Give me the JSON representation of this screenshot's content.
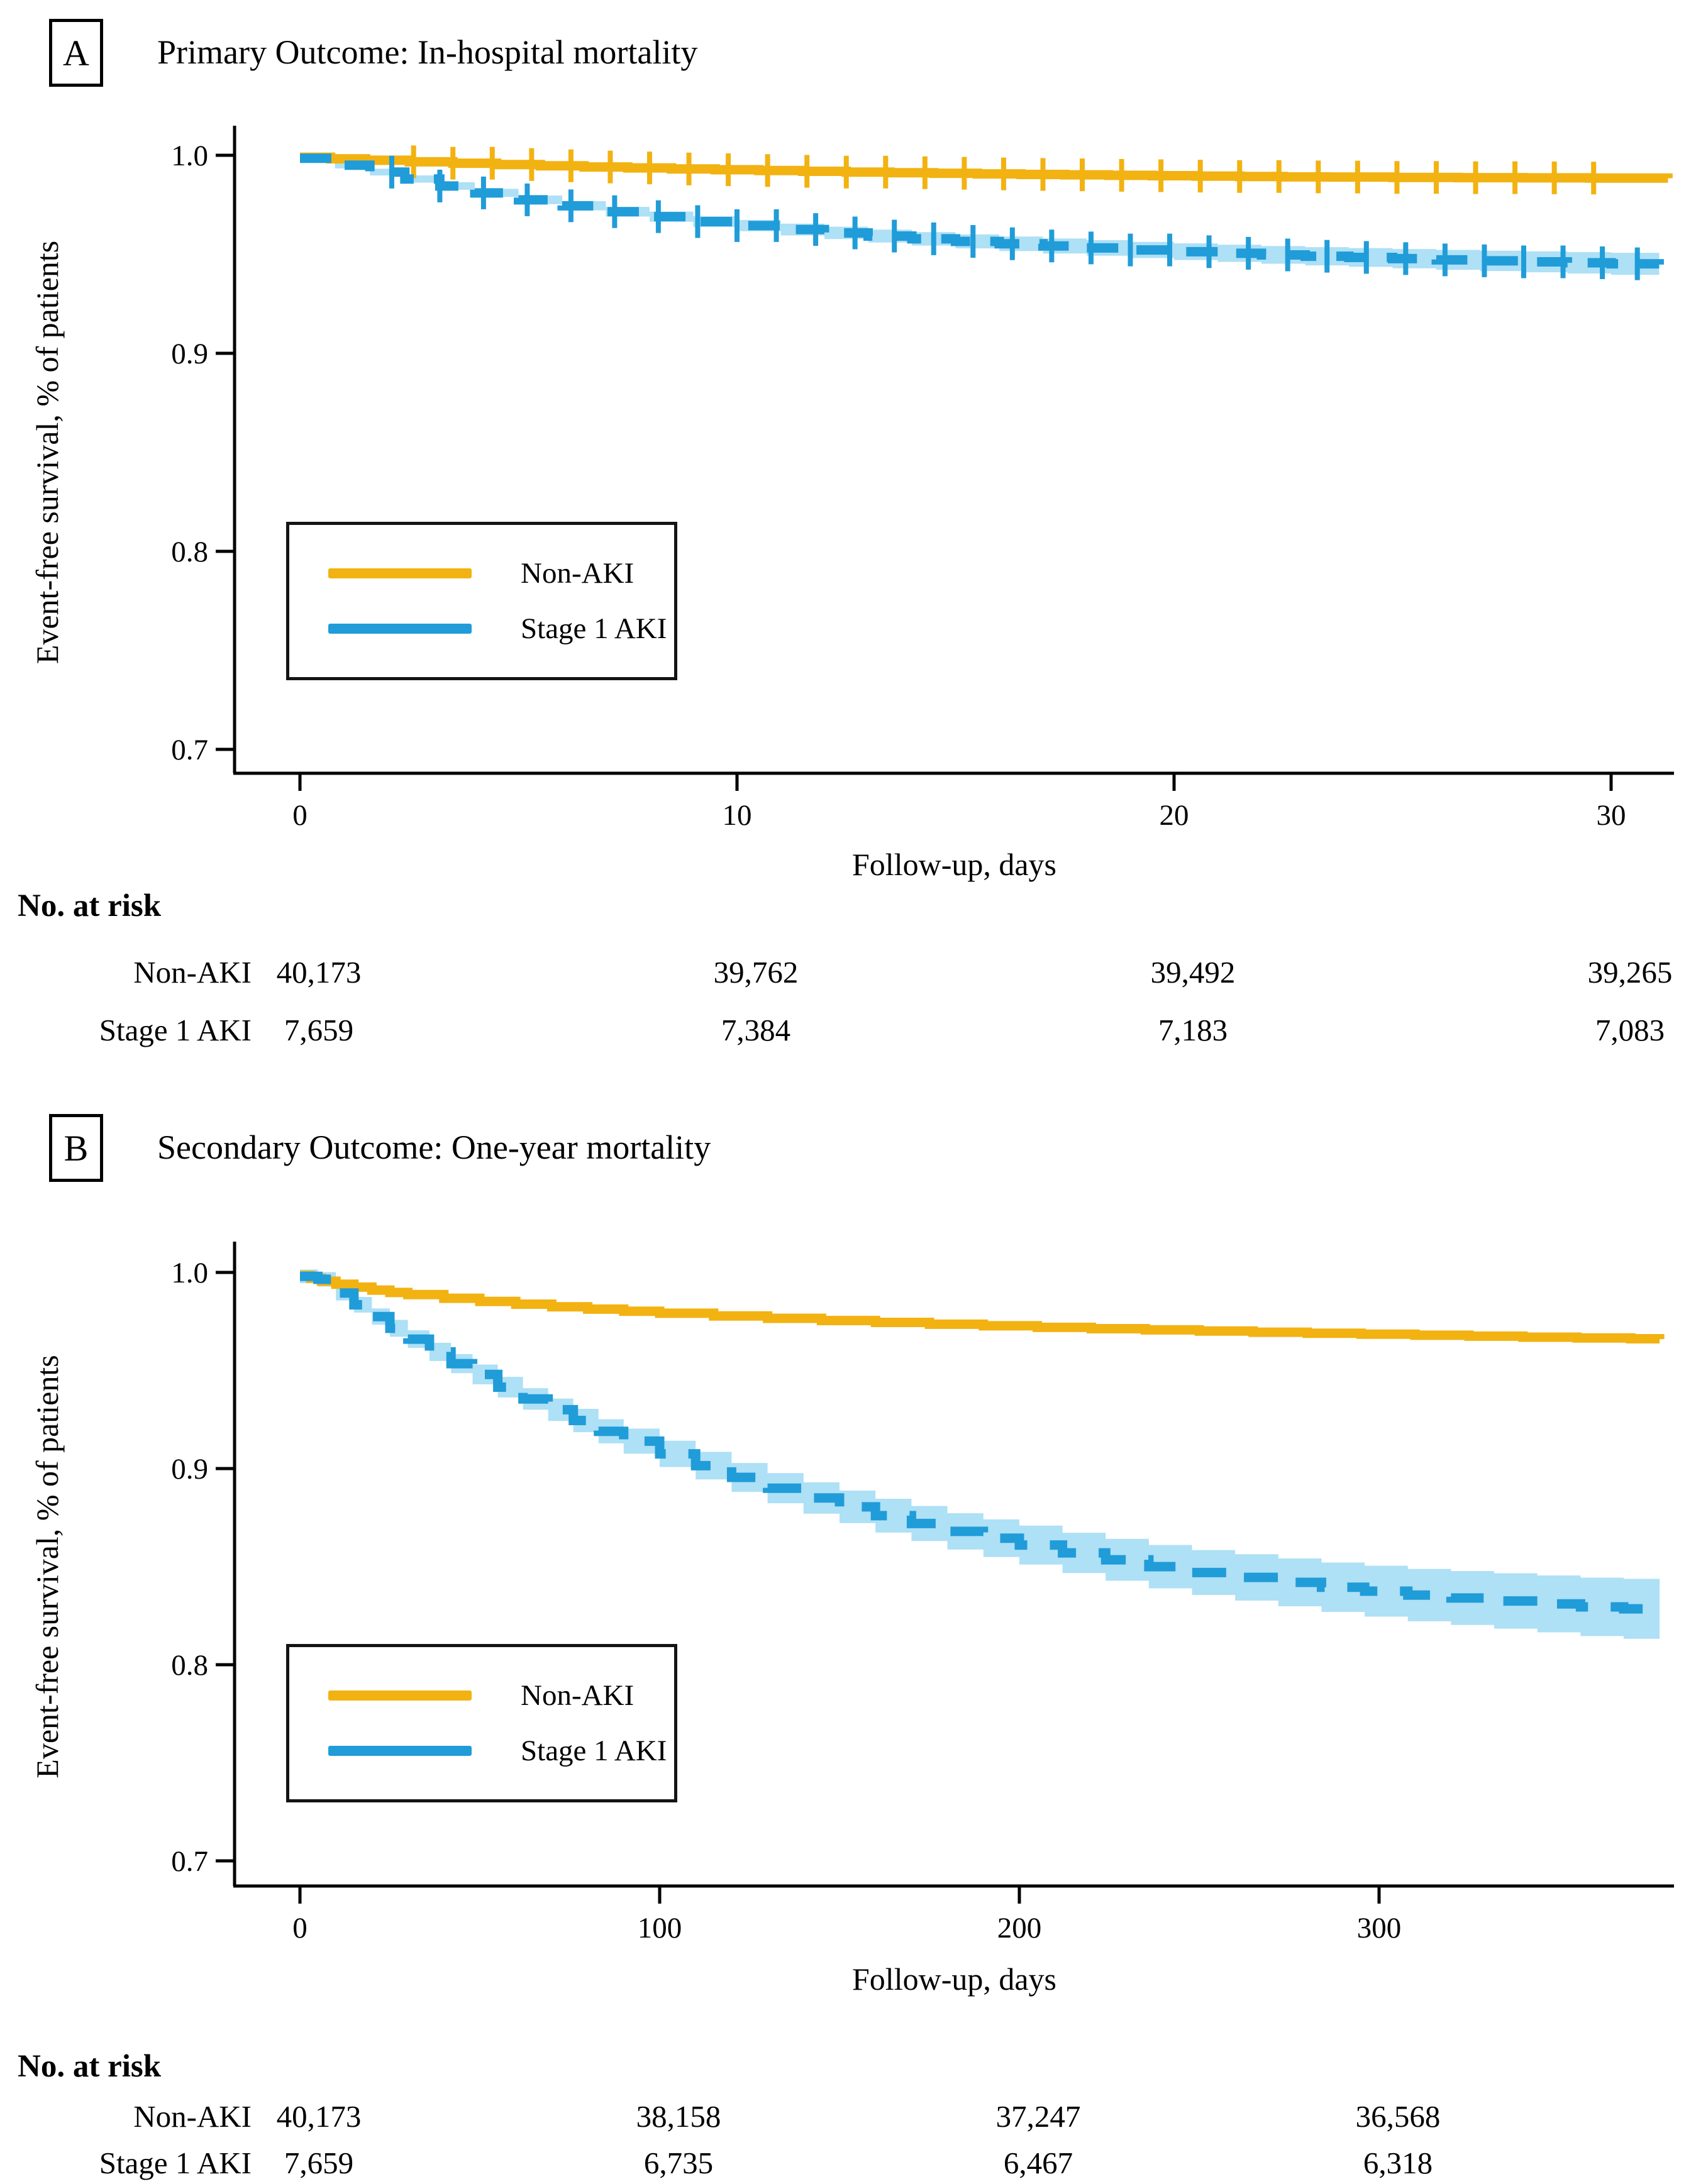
{
  "figure": {
    "background": "#ffffff",
    "text_color": "#000000",
    "axis_color": "#000000"
  },
  "chart_data": [
    {
      "type": "line",
      "tag": "A",
      "title": "Primary Outcome: In-hospital mortality",
      "xlabel": "Follow-up, days",
      "ylabel": "Event-free survival, % of patients",
      "xlim": [
        0,
        31.5
      ],
      "ylim": [
        0.68,
        1.005
      ],
      "grid": "off",
      "legend_position": "lower-left",
      "x_ticks": {
        "values": [
          0,
          10,
          20,
          30
        ],
        "labels": [
          "0",
          "10",
          "20",
          "30"
        ]
      },
      "y_ticks": {
        "values": [
          1.0,
          0.9,
          0.8,
          0.7
        ],
        "labels": [
          "1.0",
          "0.9",
          "0.8",
          "0.7"
        ]
      },
      "series": [
        {
          "name": "Non-AKI",
          "color": "#F2B211",
          "style": "solid",
          "points": [
            [
              0,
              0.999
            ],
            [
              0.7,
              0.9982
            ],
            [
              1.5,
              0.9975
            ],
            [
              2.5,
              0.9967
            ],
            [
              3.5,
              0.996
            ],
            [
              4.5,
              0.9953
            ],
            [
              5.5,
              0.9947
            ],
            [
              6.5,
              0.9941
            ],
            [
              7.5,
              0.9936
            ],
            [
              8.5,
              0.9931
            ],
            [
              9.5,
              0.9927
            ],
            [
              10.5,
              0.9923
            ],
            [
              11.5,
              0.9919
            ],
            [
              12.5,
              0.9915
            ],
            [
              13.5,
              0.9912
            ],
            [
              14.5,
              0.9909
            ],
            [
              15.5,
              0.9906
            ],
            [
              16.5,
              0.9903
            ],
            [
              17.5,
              0.9901
            ],
            [
              18.5,
              0.9899
            ],
            [
              19.5,
              0.9897
            ],
            [
              20.5,
              0.9895
            ],
            [
              21.5,
              0.9893
            ],
            [
              22.5,
              0.9891
            ],
            [
              23.5,
              0.989
            ],
            [
              25,
              0.9888
            ],
            [
              26.5,
              0.9887
            ],
            [
              28,
              0.9886
            ],
            [
              29.5,
              0.9885
            ],
            [
              31.3,
              0.9884
            ]
          ],
          "censor_days": [
            2.6,
            3.5,
            4.4,
            5.3,
            6.2,
            7.1,
            8,
            8.9,
            9.8,
            10.7,
            11.6,
            12.5,
            13.4,
            14.3,
            15.2,
            16.1,
            17,
            17.9,
            18.8,
            19.7,
            20.6,
            21.5,
            22.4,
            23.3,
            24.2,
            25.1,
            26,
            26.9,
            27.8,
            28.7,
            29.6
          ]
        },
        {
          "name": "Stage 1 AKI",
          "color": "#209CD8",
          "style": "dashed",
          "band_color": "#AEE0F6",
          "ci_halfwidth_start": 0.0015,
          "ci_halfwidth_per_day": 0.000135,
          "points": [
            [
              0,
              0.9985
            ],
            [
              0.8,
              0.995
            ],
            [
              1.6,
              0.9915
            ],
            [
              2.4,
              0.988
            ],
            [
              3.2,
              0.9845
            ],
            [
              4,
              0.981
            ],
            [
              5,
              0.9775
            ],
            [
              6,
              0.9745
            ],
            [
              7,
              0.9715
            ],
            [
              8,
              0.969
            ],
            [
              9,
              0.9665
            ],
            [
              10,
              0.9645
            ],
            [
              11,
              0.9625
            ],
            [
              12,
              0.9608
            ],
            [
              13,
              0.9592
            ],
            [
              14,
              0.9578
            ],
            [
              15,
              0.9565
            ],
            [
              16,
              0.9553
            ],
            [
              17,
              0.9542
            ],
            [
              18,
              0.9532
            ],
            [
              19,
              0.9522
            ],
            [
              20,
              0.9513
            ],
            [
              21,
              0.9505
            ],
            [
              22,
              0.9497
            ],
            [
              23,
              0.949
            ],
            [
              24,
              0.9484
            ],
            [
              25,
              0.9478
            ],
            [
              26,
              0.9472
            ],
            [
              27,
              0.9467
            ],
            [
              28,
              0.9462
            ],
            [
              29,
              0.9457
            ],
            [
              30,
              0.9452
            ],
            [
              31.1,
              0.9448
            ]
          ],
          "censor_days": [
            2.1,
            3.2,
            4.2,
            5.2,
            6.2,
            7.2,
            8.2,
            9.1,
            10,
            10.9,
            11.8,
            12.7,
            13.6,
            14.5,
            15.4,
            16.3,
            17.2,
            18.1,
            19,
            19.9,
            20.8,
            21.7,
            22.6,
            23.5,
            24.4,
            25.3,
            26.2,
            27.1,
            28,
            28.9,
            29.8,
            30.6
          ]
        }
      ],
      "risk_table": {
        "heading": "No. at risk",
        "time_values": [
          0,
          10,
          20,
          30
        ],
        "rows": [
          {
            "label": "Non-AKI",
            "counts": [
              "40,173",
              "39,762",
              "39,492",
              "39,265"
            ]
          },
          {
            "label": "Stage 1 AKI",
            "counts": [
              "7,659",
              "7,384",
              "7,183",
              "7,083"
            ]
          }
        ]
      }
    },
    {
      "type": "line",
      "tag": "B",
      "title": "Secondary Outcome: One-year mortality",
      "xlabel": "Follow-up, days",
      "ylabel": "Event-free survival, % of patients",
      "xlim": [
        0,
        382
      ],
      "ylim": [
        0.68,
        1.005
      ],
      "grid": "off",
      "legend_position": "lower-left",
      "x_ticks": {
        "values": [
          0,
          100,
          200,
          300
        ],
        "labels": [
          "0",
          "100",
          "200",
          "300"
        ]
      },
      "y_ticks": {
        "values": [
          1.0,
          0.9,
          0.8,
          0.7
        ],
        "labels": [
          "1.0",
          "0.9",
          "0.8",
          "0.7"
        ]
      },
      "series": [
        {
          "name": "Non-AKI",
          "color": "#F2B211",
          "style": "solid",
          "points": [
            [
              0,
              0.9985
            ],
            [
              3,
              0.997
            ],
            [
              6,
              0.9955
            ],
            [
              10,
              0.994
            ],
            [
              15,
              0.9925
            ],
            [
              20,
              0.991
            ],
            [
              25,
              0.9898
            ],
            [
              30,
              0.9887
            ],
            [
              40,
              0.9868
            ],
            [
              50,
              0.9852
            ],
            [
              60,
              0.9838
            ],
            [
              70,
              0.9825
            ],
            [
              80,
              0.9813
            ],
            [
              90,
              0.9802
            ],
            [
              100,
              0.9792
            ],
            [
              115,
              0.9778
            ],
            [
              130,
              0.9766
            ],
            [
              145,
              0.9755
            ],
            [
              160,
              0.9745
            ],
            [
              175,
              0.9736
            ],
            [
              190,
              0.9728
            ],
            [
              205,
              0.972
            ],
            [
              220,
              0.9713
            ],
            [
              235,
              0.9707
            ],
            [
              250,
              0.9701
            ],
            [
              265,
              0.9695
            ],
            [
              280,
              0.969
            ],
            [
              295,
              0.9685
            ],
            [
              310,
              0.968
            ],
            [
              325,
              0.9675
            ],
            [
              340,
              0.967
            ],
            [
              355,
              0.9666
            ],
            [
              370,
              0.9662
            ],
            [
              378,
              0.966
            ]
          ],
          "censor_days": []
        },
        {
          "name": "Stage 1 AKI",
          "color": "#209CD8",
          "style": "dashed",
          "band_color": "#AEE0F6",
          "ci_halfwidth_start": 0.0035,
          "ci_halfwidth_per_day": 3.2e-05,
          "points": [
            [
              0,
              0.998
            ],
            [
              5,
              0.9965
            ],
            [
              10,
              0.9895
            ],
            [
              15,
              0.9835
            ],
            [
              20,
              0.9775
            ],
            [
              25,
              0.9715
            ],
            [
              30,
              0.966
            ],
            [
              36,
              0.9595
            ],
            [
              42,
              0.9535
            ],
            [
              48,
              0.948
            ],
            [
              55,
              0.9415
            ],
            [
              62,
              0.9355
            ],
            [
              69,
              0.93
            ],
            [
              76,
              0.9245
            ],
            [
              83,
              0.919
            ],
            [
              90,
              0.914
            ],
            [
              100,
              0.9075
            ],
            [
              110,
              0.9015
            ],
            [
              120,
              0.8955
            ],
            [
              130,
              0.89
            ],
            [
              140,
              0.885
            ],
            [
              150,
              0.8805
            ],
            [
              160,
              0.876
            ],
            [
              170,
              0.872
            ],
            [
              180,
              0.868
            ],
            [
              190,
              0.8645
            ],
            [
              200,
              0.861
            ],
            [
              212,
              0.857
            ],
            [
              224,
              0.8535
            ],
            [
              236,
              0.85
            ],
            [
              248,
              0.847
            ],
            [
              260,
              0.8445
            ],
            [
              272,
              0.842
            ],
            [
              284,
              0.8395
            ],
            [
              296,
              0.8375
            ],
            [
              308,
              0.8355
            ],
            [
              320,
              0.834
            ],
            [
              332,
              0.8325
            ],
            [
              344,
              0.831
            ],
            [
              356,
              0.8295
            ],
            [
              368,
              0.8285
            ],
            [
              378,
              0.8275
            ]
          ],
          "censor_days": []
        }
      ],
      "risk_table": {
        "heading": "No. at risk",
        "time_values": [
          0,
          100,
          200,
          300
        ],
        "rows": [
          {
            "label": "Non-AKI",
            "counts": [
              "40,173",
              "38,158",
              "37,247",
              "36,568"
            ]
          },
          {
            "label": "Stage 1 AKI",
            "counts": [
              "7,659",
              "6,735",
              "6,467",
              "6,318"
            ]
          }
        ]
      }
    }
  ]
}
